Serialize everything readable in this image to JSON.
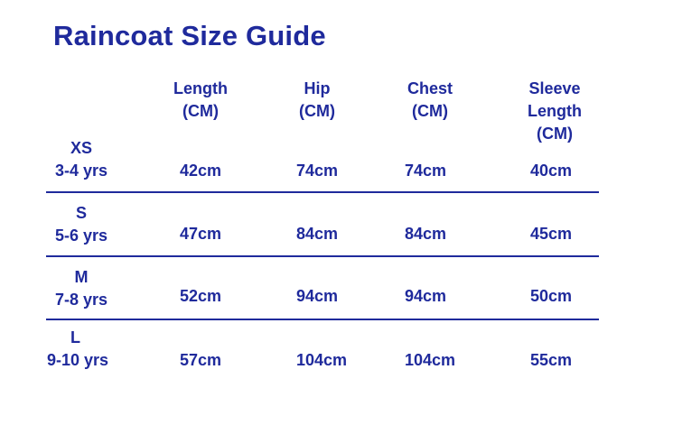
{
  "title": "Raincoat Size Guide",
  "columns": [
    {
      "lines": [
        "Length",
        "(CM)"
      ]
    },
    {
      "lines": [
        "Hip",
        "(CM)"
      ]
    },
    {
      "lines": [
        "Chest",
        "(CM)"
      ]
    },
    {
      "lines": [
        "Sleeve",
        "Length",
        "(CM)"
      ]
    }
  ],
  "rows": [
    {
      "size": "XS",
      "age": "3-4 yrs",
      "values": [
        "42cm",
        "74cm",
        "74cm",
        "40cm"
      ]
    },
    {
      "size": "S",
      "age": "5-6 yrs",
      "values": [
        "47cm",
        "84cm",
        "84cm",
        "45cm"
      ]
    },
    {
      "size": "M",
      "age": "7-8 yrs",
      "values": [
        "52cm",
        "94cm",
        "94cm",
        "50cm"
      ]
    },
    {
      "size": "L",
      "age": "9-10 yrs",
      "values": [
        "57cm",
        "104cm",
        "104cm",
        "55cm"
      ]
    }
  ],
  "colors": {
    "text": "#1f2a9c",
    "background": "#ffffff"
  }
}
